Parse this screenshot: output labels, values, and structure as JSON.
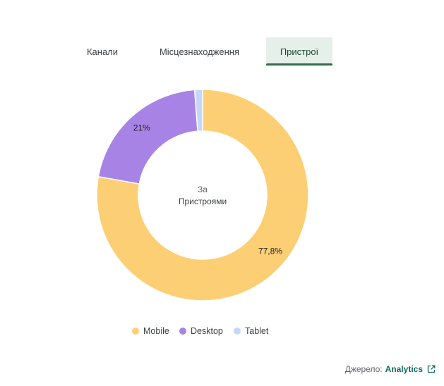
{
  "tabs": [
    {
      "label": "Канали"
    },
    {
      "label": "Місцезнаходження"
    },
    {
      "label": "Пристрої",
      "active": true
    }
  ],
  "chart_data": {
    "type": "pie",
    "donut": true,
    "center_label": {
      "line1": "За",
      "line2": "Пристроями"
    },
    "categories": [
      "Mobile",
      "Desktop",
      "Tablet"
    ],
    "values": [
      77.8,
      21,
      1.2
    ],
    "data_labels": [
      "77,8%",
      "21%",
      ""
    ],
    "colors": [
      "#fdcf74",
      "#a883e6",
      "#c5d7f5"
    ],
    "legend_position": "bottom"
  },
  "legend": [
    {
      "label": "Mobile",
      "color": "#fdcf74"
    },
    {
      "label": "Desktop",
      "color": "#a883e6"
    },
    {
      "label": "Tablet",
      "color": "#c5d7f5"
    }
  ],
  "source": {
    "prefix": "Джерело:",
    "link": "Analytics",
    "icon": "external-link-icon"
  }
}
